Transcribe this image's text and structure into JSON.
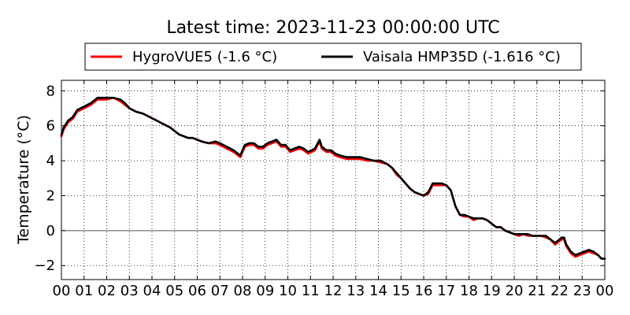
{
  "chart_data": {
    "type": "line",
    "title": "Latest time: 2023-11-23 00:00:00 UTC",
    "ylabel": "Temperature (°C)",
    "xlabel": "",
    "x_unit": "hour of day (UTC)",
    "xlim": [
      0,
      24
    ],
    "ylim": [
      -2.8,
      8.6
    ],
    "grid": true,
    "zero_line": true,
    "legend_position": "top",
    "x_ticks": [
      "00",
      "01",
      "02",
      "03",
      "04",
      "05",
      "06",
      "07",
      "08",
      "09",
      "10",
      "11",
      "12",
      "13",
      "14",
      "15",
      "16",
      "17",
      "18",
      "19",
      "20",
      "21",
      "22",
      "23",
      "00"
    ],
    "y_ticks": [
      -2,
      0,
      2,
      4,
      6,
      8
    ],
    "x": [
      0.0,
      0.1,
      0.3,
      0.5,
      0.7,
      1.0,
      1.3,
      1.6,
      2.0,
      2.3,
      2.6,
      2.8,
      3.0,
      3.3,
      3.6,
      3.9,
      4.2,
      4.5,
      4.8,
      5.0,
      5.2,
      5.4,
      5.6,
      5.8,
      6.0,
      6.2,
      6.5,
      6.8,
      7.0,
      7.3,
      7.6,
      7.9,
      8.1,
      8.3,
      8.5,
      8.7,
      8.9,
      9.1,
      9.3,
      9.5,
      9.7,
      9.9,
      10.1,
      10.3,
      10.5,
      10.7,
      10.9,
      11.2,
      11.4,
      11.5,
      11.7,
      11.9,
      12.1,
      12.3,
      12.6,
      12.9,
      13.2,
      13.5,
      13.8,
      14.1,
      14.4,
      14.6,
      14.8,
      15.0,
      15.2,
      15.4,
      15.6,
      15.8,
      16.0,
      16.2,
      16.4,
      16.6,
      16.8,
      17.0,
      17.2,
      17.4,
      17.6,
      17.8,
      18.0,
      18.2,
      18.4,
      18.6,
      18.8,
      19.0,
      19.2,
      19.4,
      19.6,
      19.8,
      20.0,
      20.2,
      20.4,
      20.6,
      20.8,
      21.0,
      21.2,
      21.4,
      21.6,
      21.8,
      22.0,
      22.1,
      22.2,
      22.3,
      22.5,
      22.7,
      22.9,
      23.1,
      23.3,
      23.5,
      23.7,
      23.85,
      24.0
    ],
    "series": [
      {
        "name": "HygroVUE5 (-1.6 °C)",
        "color": "#ff0000",
        "values": [
          5.4,
          5.8,
          6.2,
          6.4,
          6.8,
          7.0,
          7.2,
          7.5,
          7.5,
          7.6,
          7.4,
          7.2,
          7.0,
          6.8,
          6.7,
          6.5,
          6.3,
          6.1,
          5.9,
          5.7,
          5.5,
          5.4,
          5.3,
          5.3,
          5.2,
          5.1,
          5.0,
          5.0,
          4.9,
          4.7,
          4.5,
          4.2,
          4.8,
          4.9,
          4.9,
          4.7,
          4.7,
          4.9,
          5.0,
          5.1,
          4.8,
          4.8,
          4.5,
          4.6,
          4.7,
          4.6,
          4.4,
          4.6,
          5.1,
          4.7,
          4.5,
          4.5,
          4.3,
          4.2,
          4.1,
          4.1,
          4.1,
          4.0,
          4.0,
          3.9,
          3.8,
          3.6,
          3.2,
          3.0,
          2.7,
          2.4,
          2.2,
          2.1,
          2.0,
          2.1,
          2.6,
          2.6,
          2.6,
          2.6,
          2.3,
          1.4,
          0.9,
          0.8,
          0.8,
          0.6,
          0.7,
          0.7,
          0.6,
          0.4,
          0.2,
          0.2,
          0.0,
          -0.1,
          -0.2,
          -0.3,
          -0.2,
          -0.3,
          -0.3,
          -0.3,
          -0.3,
          -0.4,
          -0.5,
          -0.8,
          -0.6,
          -0.5,
          -0.5,
          -0.9,
          -1.3,
          -1.5,
          -1.4,
          -1.3,
          -1.2,
          -1.3,
          -1.4,
          -1.6,
          -1.6
        ]
      },
      {
        "name": "Vaisala HMP35D (-1.616 °C)",
        "color": "#000000",
        "values": [
          5.5,
          5.9,
          6.3,
          6.5,
          6.9,
          7.1,
          7.3,
          7.6,
          7.6,
          7.6,
          7.5,
          7.3,
          7.0,
          6.8,
          6.7,
          6.5,
          6.3,
          6.1,
          5.9,
          5.7,
          5.5,
          5.4,
          5.3,
          5.3,
          5.2,
          5.1,
          5.0,
          5.1,
          5.0,
          4.8,
          4.6,
          4.3,
          4.9,
          5.0,
          5.0,
          4.8,
          4.8,
          5.0,
          5.1,
          5.2,
          4.9,
          4.9,
          4.6,
          4.7,
          4.8,
          4.7,
          4.5,
          4.7,
          5.2,
          4.8,
          4.6,
          4.6,
          4.4,
          4.3,
          4.2,
          4.2,
          4.2,
          4.1,
          4.0,
          4.0,
          3.8,
          3.6,
          3.3,
          3.0,
          2.7,
          2.4,
          2.2,
          2.1,
          2.0,
          2.2,
          2.7,
          2.7,
          2.7,
          2.6,
          2.3,
          1.4,
          0.9,
          0.9,
          0.8,
          0.7,
          0.7,
          0.7,
          0.6,
          0.4,
          0.2,
          0.2,
          0.0,
          -0.1,
          -0.2,
          -0.2,
          -0.2,
          -0.2,
          -0.3,
          -0.3,
          -0.3,
          -0.3,
          -0.5,
          -0.7,
          -0.5,
          -0.4,
          -0.4,
          -0.8,
          -1.2,
          -1.4,
          -1.3,
          -1.2,
          -1.1,
          -1.2,
          -1.4,
          -1.6,
          -1.6
        ]
      }
    ]
  }
}
